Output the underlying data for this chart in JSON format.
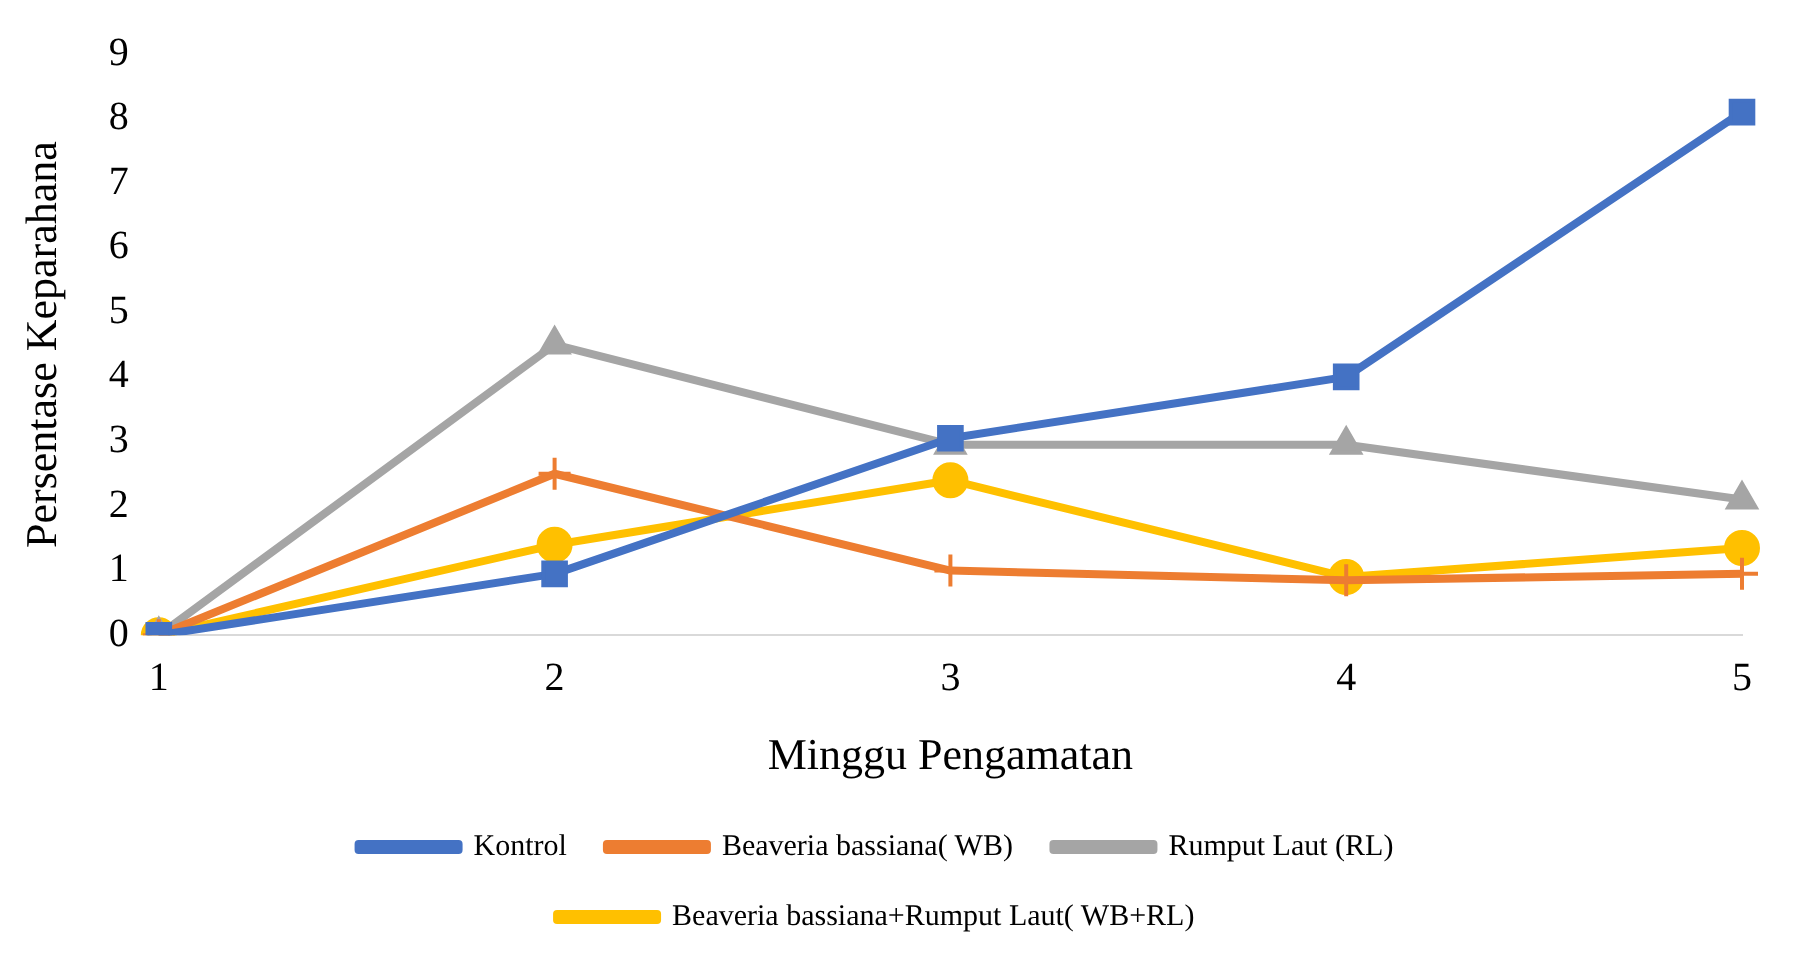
{
  "chart_data": {
    "type": "line",
    "xlabel": "Minggu Pengamatan",
    "ylabel": "Persentase Keparahana",
    "categories": [
      "1",
      "2",
      "3",
      "4",
      "5"
    ],
    "series": [
      {
        "name": "Kontrol",
        "color": "#4472c4",
        "marker": "square",
        "values": [
          0,
          0.95,
          3.05,
          4.0,
          8.1
        ]
      },
      {
        "name": "Beaveria bassiana( WB)",
        "color": "#ed7d31",
        "marker": "cross",
        "values": [
          0,
          2.5,
          1.0,
          0.85,
          0.95
        ]
      },
      {
        "name": "Rumput Laut (RL)",
        "color": "#a5a5a5",
        "marker": "triangle",
        "values": [
          0,
          4.5,
          2.95,
          2.95,
          2.1
        ]
      },
      {
        "name": "Beaveria bassiana+Rumput Laut( WB+RL)",
        "color": "#ffc000",
        "marker": "circle",
        "values": [
          0,
          1.4,
          2.4,
          0.9,
          1.35
        ]
      }
    ],
    "ylim": [
      0,
      9
    ],
    "yticks": [
      0,
      1,
      2,
      3,
      4,
      5,
      6,
      7,
      8,
      9
    ],
    "grid": false,
    "legend": "bottom"
  }
}
